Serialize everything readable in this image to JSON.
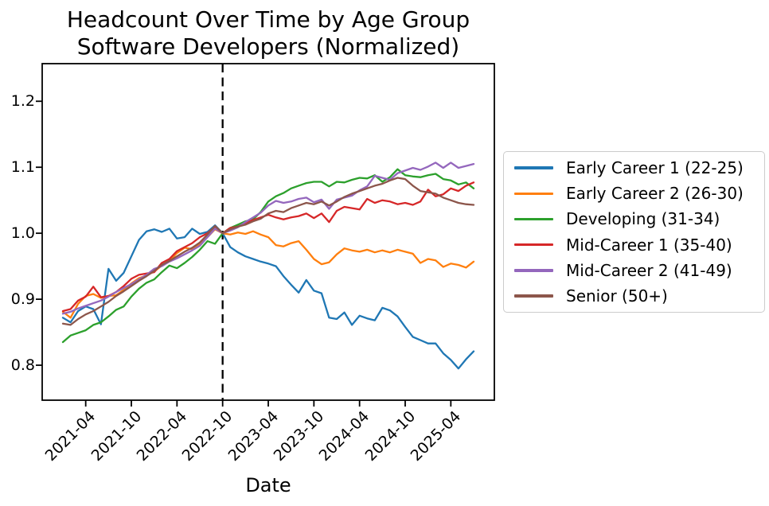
{
  "figure": {
    "title_line1": "Headcount Over Time by Age Group",
    "title_line2": "Software Developers (Normalized)"
  },
  "chart_data": {
    "type": "line",
    "title": "Headcount Over Time by Age Group\nSoftware Developers (Normalized)",
    "subtitle": "Software Developers (Normalized)",
    "xlabel": "Date",
    "ylabel": "",
    "grid": false,
    "legend_position": "outside-right",
    "ylim": [
      0.747,
      1.257
    ],
    "y_ticks": [
      0.8,
      0.9,
      1.0,
      1.1,
      1.2
    ],
    "y_tick_labels": [
      "0.8",
      "0.9",
      "1.0",
      "1.1",
      "1.2"
    ],
    "x_tick_labels": [
      "2021-04",
      "2021-10",
      "2022-04",
      "2022-10",
      "2023-04",
      "2023-10",
      "2024-04",
      "2024-10",
      "2025-04"
    ],
    "normalization_vline": {
      "x": "2022-10",
      "style": "dashed",
      "color": "#000000",
      "value_at_line": 1.0
    },
    "x": [
      "2021-01",
      "2021-02",
      "2021-03",
      "2021-04",
      "2021-05",
      "2021-06",
      "2021-07",
      "2021-08",
      "2021-09",
      "2021-10",
      "2021-11",
      "2021-12",
      "2022-01",
      "2022-02",
      "2022-03",
      "2022-04",
      "2022-05",
      "2022-06",
      "2022-07",
      "2022-08",
      "2022-09",
      "2022-10",
      "2022-11",
      "2022-12",
      "2023-01",
      "2023-02",
      "2023-03",
      "2023-04",
      "2023-05",
      "2023-06",
      "2023-07",
      "2023-08",
      "2023-09",
      "2023-10",
      "2023-11",
      "2023-12",
      "2024-01",
      "2024-02",
      "2024-03",
      "2024-04",
      "2024-05",
      "2024-06",
      "2024-07",
      "2024-08",
      "2024-09",
      "2024-10",
      "2024-11",
      "2024-12",
      "2025-01",
      "2025-02",
      "2025-03",
      "2025-04",
      "2025-05",
      "2025-06",
      "2025-07"
    ],
    "series": [
      {
        "name": "Early Career 1 (22-25)",
        "color": "#1f77b4",
        "values": [
          0.872,
          0.865,
          0.882,
          0.889,
          0.885,
          0.862,
          0.946,
          0.928,
          0.94,
          0.965,
          0.99,
          1.003,
          1.006,
          1.002,
          1.007,
          0.992,
          0.994,
          1.007,
          0.999,
          1.002,
          1.012,
          1.0,
          0.979,
          0.971,
          0.965,
          0.961,
          0.957,
          0.954,
          0.95,
          0.935,
          0.922,
          0.91,
          0.929,
          0.913,
          0.909,
          0.872,
          0.87,
          0.88,
          0.861,
          0.875,
          0.871,
          0.868,
          0.887,
          0.883,
          0.874,
          0.858,
          0.843,
          0.838,
          0.833,
          0.833,
          0.818,
          0.808,
          0.795,
          0.809,
          0.821
        ]
      },
      {
        "name": "Early Career 2 (26-30)",
        "color": "#ff7f0e",
        "values": [
          0.881,
          0.872,
          0.893,
          0.905,
          0.908,
          0.902,
          0.905,
          0.906,
          0.914,
          0.924,
          0.932,
          0.936,
          0.942,
          0.951,
          0.958,
          0.97,
          0.978,
          0.976,
          0.984,
          0.994,
          1.006,
          1.0,
          0.998,
          1.001,
          0.999,
          1.003,
          0.998,
          0.994,
          0.982,
          0.98,
          0.985,
          0.988,
          0.975,
          0.961,
          0.953,
          0.956,
          0.968,
          0.977,
          0.974,
          0.972,
          0.975,
          0.971,
          0.974,
          0.971,
          0.975,
          0.972,
          0.969,
          0.955,
          0.961,
          0.959,
          0.949,
          0.954,
          0.952,
          0.948,
          0.957
        ]
      },
      {
        "name": "Developing (31-34)",
        "color": "#2ca02c",
        "values": [
          0.835,
          0.845,
          0.849,
          0.853,
          0.861,
          0.865,
          0.874,
          0.884,
          0.889,
          0.904,
          0.916,
          0.925,
          0.93,
          0.941,
          0.951,
          0.947,
          0.955,
          0.964,
          0.975,
          0.988,
          0.984,
          1.0,
          1.008,
          1.013,
          1.018,
          1.021,
          1.032,
          1.048,
          1.056,
          1.061,
          1.068,
          1.072,
          1.076,
          1.078,
          1.078,
          1.071,
          1.078,
          1.077,
          1.081,
          1.084,
          1.083,
          1.088,
          1.078,
          1.085,
          1.097,
          1.088,
          1.086,
          1.085,
          1.088,
          1.09,
          1.082,
          1.08,
          1.074,
          1.077,
          1.068
        ]
      },
      {
        "name": "Mid-Career 1 (35-40)",
        "color": "#d62728",
        "values": [
          0.882,
          0.885,
          0.898,
          0.904,
          0.919,
          0.903,
          0.905,
          0.911,
          0.92,
          0.931,
          0.937,
          0.939,
          0.941,
          0.955,
          0.961,
          0.973,
          0.979,
          0.985,
          0.994,
          1.0,
          1.01,
          1.0,
          1.008,
          1.01,
          1.015,
          1.02,
          1.024,
          1.028,
          1.024,
          1.021,
          1.024,
          1.026,
          1.03,
          1.023,
          1.03,
          1.017,
          1.034,
          1.04,
          1.038,
          1.036,
          1.052,
          1.046,
          1.05,
          1.048,
          1.044,
          1.046,
          1.043,
          1.048,
          1.066,
          1.056,
          1.059,
          1.068,
          1.064,
          1.072,
          1.077
        ]
      },
      {
        "name": "Mid-Career 2 (41-49)",
        "color": "#9467bd",
        "values": [
          0.878,
          0.881,
          0.886,
          0.89,
          0.894,
          0.898,
          0.904,
          0.911,
          0.917,
          0.923,
          0.93,
          0.937,
          0.946,
          0.95,
          0.957,
          0.962,
          0.968,
          0.974,
          0.981,
          0.994,
          1.007,
          1.0,
          1.004,
          1.009,
          1.017,
          1.024,
          1.031,
          1.042,
          1.049,
          1.046,
          1.048,
          1.052,
          1.054,
          1.047,
          1.051,
          1.037,
          1.051,
          1.054,
          1.057,
          1.065,
          1.071,
          1.087,
          1.084,
          1.081,
          1.091,
          1.095,
          1.099,
          1.096,
          1.101,
          1.107,
          1.099,
          1.107,
          1.099,
          1.102,
          1.105
        ]
      },
      {
        "name": "Senior (50+)",
        "color": "#8c564b",
        "values": [
          0.863,
          0.861,
          0.87,
          0.877,
          0.882,
          0.889,
          0.896,
          0.905,
          0.912,
          0.92,
          0.928,
          0.935,
          0.943,
          0.952,
          0.958,
          0.965,
          0.972,
          0.978,
          0.986,
          0.998,
          1.011,
          1.0,
          1.006,
          1.01,
          1.013,
          1.018,
          1.022,
          1.03,
          1.034,
          1.032,
          1.038,
          1.042,
          1.046,
          1.044,
          1.048,
          1.042,
          1.048,
          1.055,
          1.06,
          1.064,
          1.068,
          1.072,
          1.075,
          1.08,
          1.084,
          1.082,
          1.072,
          1.064,
          1.062,
          1.06,
          1.054,
          1.05,
          1.046,
          1.044,
          1.043
        ]
      }
    ]
  }
}
